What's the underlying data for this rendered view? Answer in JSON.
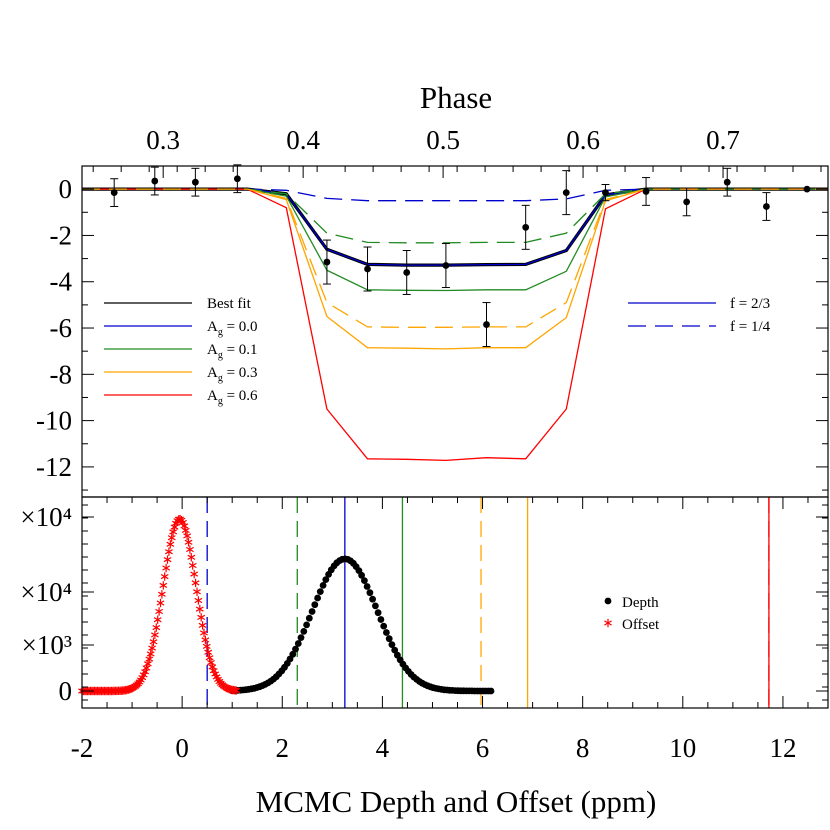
{
  "chart_data": [
    {
      "type": "line",
      "xlabel_top": "Phase",
      "x_top_ticks": [
        "0.3",
        "0.4",
        "0.5",
        "0.6",
        "0.7"
      ],
      "x_top_tick_values": [
        0.3,
        0.4,
        0.5,
        0.6,
        0.7
      ],
      "xlim_phase": [
        0.242,
        0.775
      ],
      "ylim": [
        -13.3,
        1.0
      ],
      "y_ticks": [
        "0",
        "-2",
        "-4",
        "-6",
        "-8",
        "-10",
        "-12"
      ],
      "y_tick_values": [
        0,
        -2,
        -4,
        -6,
        -8,
        -10,
        -12
      ],
      "model_phase": [
        0.242,
        0.36,
        0.388,
        0.417,
        0.446,
        0.474,
        0.502,
        0.531,
        0.559,
        0.588,
        0.616,
        0.645,
        0.775
      ],
      "series": [
        {
          "name": "Best fit",
          "color": "#000000",
          "dash": "solid",
          "width": 3.2,
          "values": [
            0,
            0,
            -0.2,
            -2.6,
            -3.25,
            -3.28,
            -3.28,
            -3.26,
            -3.25,
            -2.65,
            -0.25,
            0,
            0
          ]
        },
        {
          "name": "0.0",
          "color": "#0000cc",
          "dash": "solid",
          "width": 1.3,
          "values": [
            0,
            0,
            -0.2,
            -2.6,
            -3.25,
            -3.28,
            -3.28,
            -3.26,
            -3.25,
            -2.65,
            -0.25,
            0,
            0
          ]
        },
        {
          "name": "0.1",
          "color": "#228b22",
          "dash": "solid",
          "width": 1.3,
          "values": [
            0,
            0,
            -0.3,
            -3.5,
            -4.35,
            -4.37,
            -4.38,
            -4.35,
            -4.35,
            -3.55,
            -0.33,
            0,
            0
          ]
        },
        {
          "name": "0.3",
          "color": "#ffa500",
          "dash": "solid",
          "width": 1.3,
          "values": [
            0,
            0,
            -0.45,
            -5.5,
            -6.85,
            -6.87,
            -6.9,
            -6.85,
            -6.85,
            -5.55,
            -0.5,
            0,
            0
          ]
        },
        {
          "name": "0.6",
          "color": "#ff0000",
          "dash": "solid",
          "width": 1.3,
          "values": [
            0,
            0,
            -0.8,
            -9.5,
            -11.65,
            -11.67,
            -11.72,
            -11.6,
            -11.65,
            -9.5,
            -0.85,
            0,
            0
          ]
        },
        {
          "name": "f = 2/3 dashed 0.0",
          "color": "#0000cc",
          "dash": "dashed",
          "width": 1.3,
          "values": [
            0,
            0,
            -0.05,
            -0.4,
            -0.5,
            -0.5,
            -0.5,
            -0.5,
            -0.5,
            -0.42,
            -0.05,
            0,
            0
          ]
        },
        {
          "name": "dashed 0.1",
          "color": "#228b22",
          "dash": "dashed",
          "width": 1.3,
          "values": [
            0,
            0,
            -0.2,
            -1.9,
            -2.3,
            -2.32,
            -2.32,
            -2.3,
            -2.3,
            -1.9,
            -0.2,
            0,
            0
          ]
        },
        {
          "name": "dashed 0.3",
          "color": "#ffa500",
          "dash": "dashed",
          "width": 1.3,
          "values": [
            0,
            0,
            -0.4,
            -4.9,
            -5.95,
            -5.97,
            -5.97,
            -5.95,
            -5.95,
            -4.9,
            -0.45,
            0,
            0
          ]
        }
      ],
      "data_points": {
        "x": [
          0.265,
          0.294,
          0.323,
          0.353,
          0.417,
          0.446,
          0.474,
          0.502,
          0.531,
          0.559,
          0.588,
          0.616,
          0.645,
          0.674,
          0.703,
          0.731,
          0.76
        ],
        "y": [
          -0.15,
          0.35,
          0.3,
          0.45,
          -3.15,
          -3.45,
          -3.6,
          -3.3,
          -5.85,
          -1.65,
          -0.15,
          -0.15,
          -0.1,
          -0.55,
          0.3,
          -0.75,
          0.0
        ],
        "err": [
          0.6,
          0.6,
          0.6,
          0.6,
          0.95,
          0.95,
          0.95,
          0.95,
          0.95,
          0.95,
          0.95,
          0.35,
          0.6,
          0.6,
          0.6,
          0.6,
          0.0
        ]
      },
      "legend_left": [
        {
          "label": "Best fit",
          "color": "#000000",
          "sub": false
        },
        {
          "label_pre": "A",
          "label_sub": "g",
          "label_post": " = 0.0",
          "color": "#0000cc",
          "sub": true
        },
        {
          "label_pre": "A",
          "label_sub": "g",
          "label_post": " = 0.1",
          "color": "#228b22",
          "sub": true
        },
        {
          "label_pre": "A",
          "label_sub": "g",
          "label_post": " = 0.3",
          "color": "#ffa500",
          "sub": true
        },
        {
          "label_pre": "A",
          "label_sub": "g",
          "label_post": " = 0.6",
          "color": "#ff0000",
          "sub": true
        }
      ],
      "legend_right": [
        {
          "label": "f = 2/3",
          "color": "#0000cc",
          "dash": "solid"
        },
        {
          "label": "f = 1/4",
          "color": "#0000cc",
          "dash": "dashed"
        }
      ]
    },
    {
      "type": "scatter",
      "xlabel": "MCMC Depth and Offset (ppm)",
      "xlim": [
        -2,
        12.9
      ],
      "x_ticks": [
        "-2",
        "0",
        "2",
        "4",
        "6",
        "8",
        "10",
        "12"
      ],
      "x_tick_values": [
        -2,
        0,
        2,
        4,
        6,
        8,
        10,
        12
      ],
      "y_tick_labels": [
        "0",
        "×10³",
        "×10⁴",
        "×10⁴"
      ],
      "depth_hist": {
        "name": "Depth",
        "color": "#000000",
        "marker": "circle",
        "center": 3.25,
        "sigma": 0.65,
        "peak_frac": 0.73
      },
      "offset_hist": {
        "name": "Offset",
        "color": "#ff0000",
        "marker": "asterisk",
        "center": -0.05,
        "sigma": 0.33,
        "peak_frac": 0.95
      },
      "vlines": [
        {
          "x": 0.5,
          "color": "#0000cc",
          "dash": "dashed"
        },
        {
          "x": 2.3,
          "color": "#228b22",
          "dash": "dashed"
        },
        {
          "x": 3.25,
          "color": "#0000cc",
          "dash": "solid"
        },
        {
          "x": 4.4,
          "color": "#228b22",
          "dash": "solid"
        },
        {
          "x": 5.97,
          "color": "#ffa500",
          "dash": "dashed"
        },
        {
          "x": 6.9,
          "color": "#ffa500",
          "dash": "solid"
        },
        {
          "x": 11.72,
          "color": "#ff0000",
          "dash": "solid"
        },
        {
          "x": 11.72,
          "color": "#ff0000",
          "dash": "dashed"
        }
      ],
      "legend": [
        {
          "label": "Depth",
          "marker": "circle",
          "color": "#000000"
        },
        {
          "label": "Offset",
          "marker": "asterisk",
          "color": "#ff0000"
        }
      ]
    }
  ]
}
